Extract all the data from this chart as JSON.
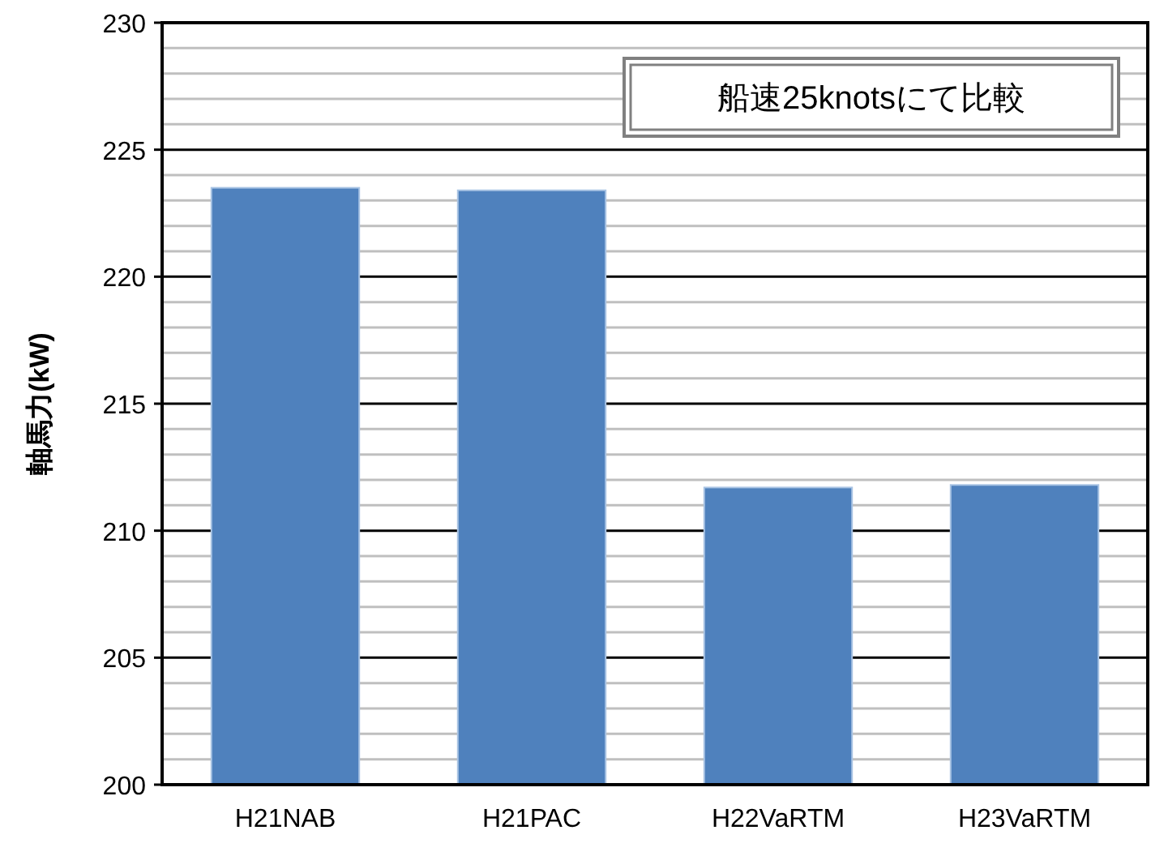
{
  "chart_data": {
    "type": "bar",
    "categories": [
      "H21NAB",
      "H21PAC",
      "H22VaRTM",
      "H23VaRTM"
    ],
    "values": [
      223.5,
      223.4,
      211.7,
      211.8
    ],
    "color": "#4f81bd",
    "ylabel": "軸馬力(kW)",
    "ylim": [
      200,
      230
    ],
    "yticks": [
      200,
      {
        "value": 201,
        "label": null
      },
      {
        "value": 202,
        "label": null
      },
      {
        "value": 203,
        "label": null
      },
      {
        "value": 204,
        "label": null
      },
      205,
      {
        "value": 206,
        "label": null
      },
      {
        "value": 207,
        "label": null
      },
      {
        "value": 208,
        "label": null
      },
      {
        "value": 209,
        "label": null
      },
      210,
      {
        "value": 211,
        "label": null
      },
      {
        "value": 212,
        "label": null
      },
      {
        "value": 213,
        "label": null
      },
      {
        "value": 214,
        "label": null
      },
      215,
      {
        "value": 216,
        "label": null
      },
      {
        "value": 217,
        "label": null
      },
      {
        "value": 218,
        "label": null
      },
      {
        "value": 219,
        "label": null
      },
      220,
      {
        "value": 221,
        "label": null
      },
      {
        "value": 222,
        "label": null
      },
      {
        "value": 223,
        "label": null
      },
      {
        "value": 224,
        "label": null
      },
      225,
      {
        "value": 226,
        "label": null
      },
      {
        "value": 227,
        "label": null
      },
      {
        "value": 228,
        "label": null
      },
      {
        "value": 229,
        "label": null
      },
      230
    ],
    "grid": "y",
    "annotations": [
      "船速25knotsにて比較"
    ]
  }
}
